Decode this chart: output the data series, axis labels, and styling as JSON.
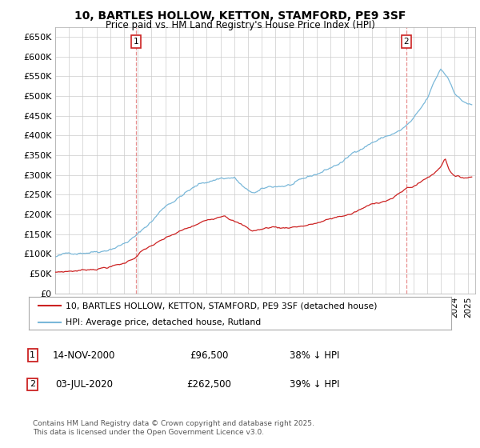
{
  "title": "10, BARTLES HOLLOW, KETTON, STAMFORD, PE9 3SF",
  "subtitle": "Price paid vs. HM Land Registry's House Price Index (HPI)",
  "ylabel_ticks": [
    "£0",
    "£50K",
    "£100K",
    "£150K",
    "£200K",
    "£250K",
    "£300K",
    "£350K",
    "£400K",
    "£450K",
    "£500K",
    "£550K",
    "£600K",
    "£650K"
  ],
  "ytick_values": [
    0,
    50000,
    100000,
    150000,
    200000,
    250000,
    300000,
    350000,
    400000,
    450000,
    500000,
    550000,
    600000,
    650000
  ],
  "ylim": [
    0,
    675000
  ],
  "xlim_start": 1995.0,
  "xlim_end": 2025.5,
  "hpi_color": "#7ab8d9",
  "price_color": "#cc2222",
  "vline_color": "#e89090",
  "marker1_x": 2000.88,
  "marker1_y": 96500,
  "marker2_x": 2020.5,
  "marker2_y": 262500,
  "legend_line1": "10, BARTLES HOLLOW, KETTON, STAMFORD, PE9 3SF (detached house)",
  "legend_line2": "HPI: Average price, detached house, Rutland",
  "annotation1_label": "1",
  "annotation1_date": "14-NOV-2000",
  "annotation1_price": "£96,500",
  "annotation1_hpi": "38% ↓ HPI",
  "annotation2_label": "2",
  "annotation2_date": "03-JUL-2020",
  "annotation2_price": "£262,500",
  "annotation2_hpi": "39% ↓ HPI",
  "footer": "Contains HM Land Registry data © Crown copyright and database right 2025.\nThis data is licensed under the Open Government Licence v3.0.",
  "background_color": "#ffffff",
  "grid_color": "#cccccc"
}
